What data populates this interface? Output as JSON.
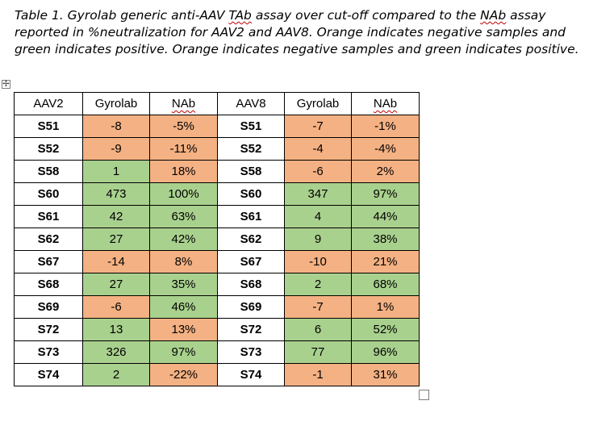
{
  "caption": {
    "part1": "Table 1. Gyrolab generic anti-AAV ",
    "tab": "TAb",
    "part2": " assay over cut-off compared to the ",
    "nab": "NAb",
    "part3": " assay reported in %neutralization for AAV2 and AAV8. Orange indicates negative samples and green indicates positive. Orange indicates negative samples and green indicates positive."
  },
  "colors": {
    "negative": "#f4b183",
    "positive": "#a9d18e"
  },
  "table": {
    "headers": [
      "AAV2",
      "Gyrolab",
      "NAb",
      "AAV8",
      "Gyrolab",
      "NAb"
    ],
    "rows": [
      {
        "aav2": "S51",
        "g2": "-8",
        "n2": "-5%",
        "aav8": "S51",
        "g8": "-7",
        "n8": "-1%",
        "g2s": "neg",
        "n2s": "neg",
        "g8s": "neg",
        "n8s": "neg"
      },
      {
        "aav2": "S52",
        "g2": "-9",
        "n2": "-11%",
        "aav8": "S52",
        "g8": "-4",
        "n8": "-4%",
        "g2s": "neg",
        "n2s": "neg",
        "g8s": "neg",
        "n8s": "neg"
      },
      {
        "aav2": "S58",
        "g2": "1",
        "n2": "18%",
        "aav8": "S58",
        "g8": "-6",
        "n8": "2%",
        "g2s": "pos",
        "n2s": "neg",
        "g8s": "neg",
        "n8s": "neg"
      },
      {
        "aav2": "S60",
        "g2": "473",
        "n2": "100%",
        "aav8": "S60",
        "g8": "347",
        "n8": "97%",
        "g2s": "pos",
        "n2s": "pos",
        "g8s": "pos",
        "n8s": "pos"
      },
      {
        "aav2": "S61",
        "g2": "42",
        "n2": "63%",
        "aav8": "S61",
        "g8": "4",
        "n8": "44%",
        "g2s": "pos",
        "n2s": "pos",
        "g8s": "pos",
        "n8s": "pos"
      },
      {
        "aav2": "S62",
        "g2": "27",
        "n2": "42%",
        "aav8": "S62",
        "g8": "9",
        "n8": "38%",
        "g2s": "pos",
        "n2s": "pos",
        "g8s": "pos",
        "n8s": "pos"
      },
      {
        "aav2": "S67",
        "g2": "-14",
        "n2": "8%",
        "aav8": "S67",
        "g8": "-10",
        "n8": "21%",
        "g2s": "neg",
        "n2s": "neg",
        "g8s": "neg",
        "n8s": "neg"
      },
      {
        "aav2": "S68",
        "g2": "27",
        "n2": "35%",
        "aav8": "S68",
        "g8": "2",
        "n8": "68%",
        "g2s": "pos",
        "n2s": "pos",
        "g8s": "pos",
        "n8s": "pos"
      },
      {
        "aav2": "S69",
        "g2": "-6",
        "n2": "46%",
        "aav8": "S69",
        "g8": "-7",
        "n8": "1%",
        "g2s": "neg",
        "n2s": "pos",
        "g8s": "neg",
        "n8s": "neg"
      },
      {
        "aav2": "S72",
        "g2": "13",
        "n2": "13%",
        "aav8": "S72",
        "g8": "6",
        "n8": "52%",
        "g2s": "pos",
        "n2s": "neg",
        "g8s": "pos",
        "n8s": "pos"
      },
      {
        "aav2": "S73",
        "g2": "326",
        "n2": "97%",
        "aav8": "S73",
        "g8": "77",
        "n8": "96%",
        "g2s": "pos",
        "n2s": "pos",
        "g8s": "pos",
        "n8s": "pos"
      },
      {
        "aav2": "S74",
        "g2": "2",
        "n2": "-22%",
        "aav8": "S74",
        "g8": "-1",
        "n8": "31%",
        "g2s": "pos",
        "n2s": "neg",
        "g8s": "neg",
        "n8s": "neg"
      }
    ]
  }
}
